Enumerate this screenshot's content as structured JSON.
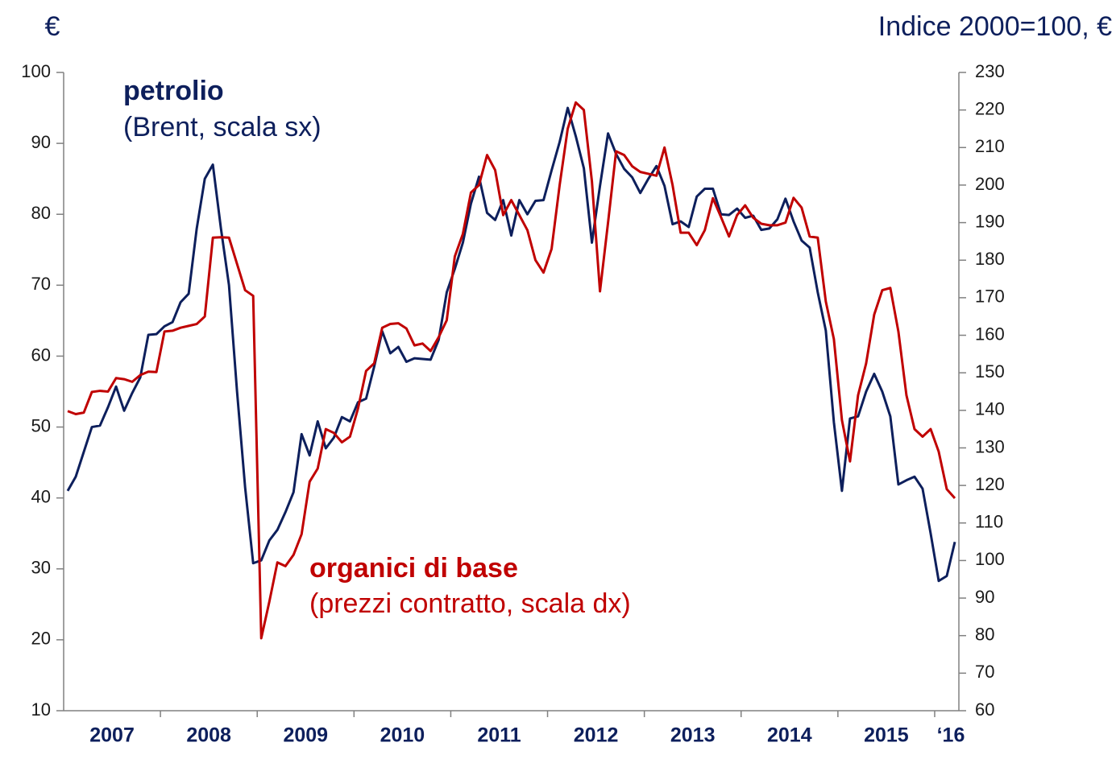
{
  "chart_data": {
    "type": "line",
    "ylabel": "€",
    "y2label": "Indice 2000=100, €",
    "categories": [
      null,
      null,
      null,
      null,
      null,
      null,
      "2007",
      null,
      null,
      null,
      null,
      null,
      null,
      null,
      null,
      null,
      null,
      null,
      "2008",
      null,
      null,
      null,
      null,
      null,
      null,
      null,
      null,
      null,
      null,
      null,
      "2009",
      null,
      null,
      null,
      null,
      null,
      null,
      null,
      null,
      null,
      null,
      null,
      "2010",
      null,
      null,
      null,
      null,
      null,
      null,
      null,
      null,
      null,
      null,
      null,
      "2011",
      null,
      null,
      null,
      null,
      null,
      null,
      null,
      null,
      null,
      null,
      null,
      "2012",
      null,
      null,
      null,
      null,
      null,
      null,
      null,
      null,
      null,
      null,
      null,
      "2013",
      null,
      null,
      null,
      null,
      null,
      null,
      null,
      null,
      null,
      null,
      null,
      "2014",
      null,
      null,
      null,
      null,
      null,
      null,
      null,
      null,
      null,
      null,
      null,
      "2015",
      null,
      null,
      null,
      null,
      null,
      null,
      null,
      "‘16"
    ],
    "ylim": [
      10,
      100
    ],
    "yticks": [
      10,
      20,
      30,
      40,
      50,
      60,
      70,
      80,
      90,
      100
    ],
    "y2lim": [
      60,
      230
    ],
    "y2ticks": [
      60,
      70,
      80,
      90,
      100,
      110,
      120,
      130,
      140,
      150,
      160,
      170,
      180,
      190,
      200,
      210,
      220,
      230
    ],
    "series": [
      {
        "name": "petrolio",
        "label": "(Brent, scala sx)",
        "color": "#0d1f5c",
        "axis": "y",
        "values": [
          41.0,
          43,
          46.5,
          50,
          50.2,
          52.8,
          55.7,
          52.3,
          54.8,
          57,
          63,
          63.1,
          64.2,
          64.8,
          67.6,
          68.8,
          78,
          85,
          87,
          78,
          70,
          55,
          41.5,
          30.8,
          31.2,
          34,
          35.5,
          38,
          40.8,
          49,
          46,
          50.8,
          47,
          48.5,
          51.4,
          50.8,
          53.5,
          54,
          58.5,
          63.5,
          60.4,
          61.3,
          59.2,
          59.7,
          59.6,
          59.5,
          62.3,
          69,
          72.3,
          76,
          81.5,
          85.3,
          80.2,
          79.2,
          82,
          77,
          82,
          80,
          81.9,
          82,
          86.2,
          90.2,
          95,
          91,
          86.5,
          76,
          84,
          91.4,
          88.5,
          86.4,
          85.2,
          83,
          85,
          86.8,
          84,
          78.6,
          79,
          78.2,
          82.5,
          83.6,
          83.6,
          80,
          79.9,
          80.8,
          79.5,
          79.8,
          77.8,
          78,
          79.3,
          82.2,
          79,
          76.3,
          75.3,
          69,
          63.6,
          50.7,
          41,
          51.2,
          51.5,
          55,
          57.5,
          55,
          51.5,
          41.9,
          42.5,
          43,
          41.3,
          35,
          28.3,
          29,
          33.8
        ]
      },
      {
        "name": "organici di base",
        "label": "(prezzi contratto, scala dx)",
        "color": "#c00000",
        "axis": "y2",
        "values": [
          139.8,
          139,
          139.4,
          144.9,
          145.2,
          145,
          148.6,
          148.3,
          147.6,
          149.4,
          150.3,
          150.2,
          161,
          161.2,
          162,
          162.5,
          163,
          165,
          186,
          186.1,
          186,
          179,
          172,
          170.5,
          79.3,
          89,
          99.5,
          98.5,
          101.5,
          107,
          121,
          124.5,
          135,
          134,
          131.5,
          133,
          140.5,
          150.5,
          152.5,
          162,
          163,
          163.2,
          161.8,
          157.3,
          157.8,
          155.8,
          159.5,
          164,
          181,
          187,
          198,
          200,
          208,
          204,
          192,
          196,
          192,
          188,
          180,
          176.7,
          183,
          200,
          215,
          222,
          220,
          201,
          171.7,
          190,
          209,
          208,
          205,
          203.5,
          203,
          202.5,
          210,
          200,
          187.3,
          187.3,
          184,
          188,
          196.5,
          191.5,
          186.3,
          192,
          194.6,
          191.3,
          189.7,
          189.3,
          189.3,
          190,
          196.6,
          194,
          186.3,
          186,
          169,
          159,
          137.4,
          126.4,
          144,
          152.5,
          165.5,
          172,
          172.6,
          161,
          144,
          135,
          133,
          135,
          129,
          119,
          116.6
        ]
      }
    ]
  }
}
